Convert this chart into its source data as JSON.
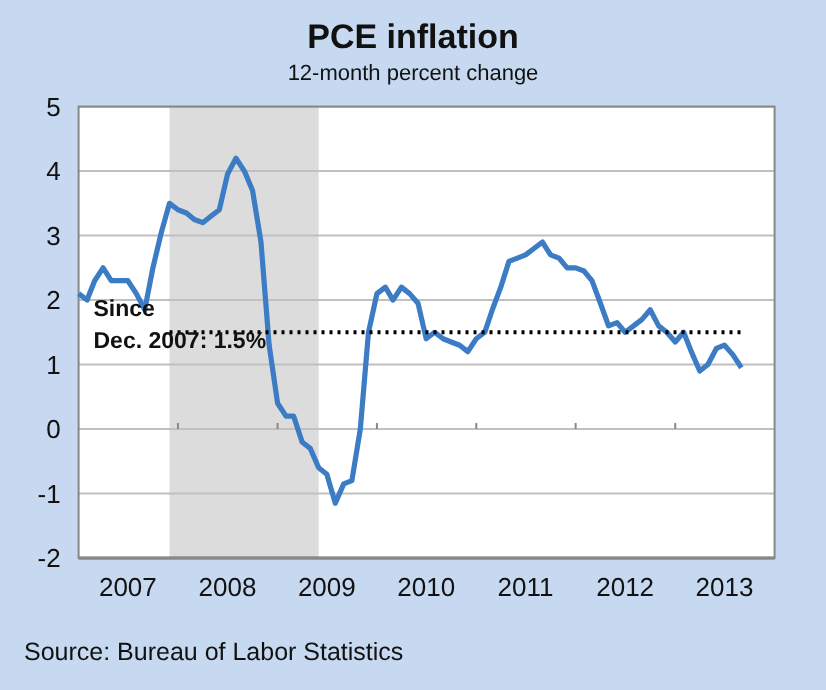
{
  "chart_data": {
    "type": "line",
    "title": "PCE inflation",
    "subtitle": "12-month percent change",
    "x": [
      "2007-01",
      "2007-02",
      "2007-03",
      "2007-04",
      "2007-05",
      "2007-06",
      "2007-07",
      "2007-08",
      "2007-09",
      "2007-10",
      "2007-11",
      "2007-12",
      "2008-01",
      "2008-02",
      "2008-03",
      "2008-04",
      "2008-05",
      "2008-06",
      "2008-07",
      "2008-08",
      "2008-09",
      "2008-10",
      "2008-11",
      "2008-12",
      "2009-01",
      "2009-02",
      "2009-03",
      "2009-04",
      "2009-05",
      "2009-06",
      "2009-07",
      "2009-08",
      "2009-09",
      "2009-10",
      "2009-11",
      "2009-12",
      "2010-01",
      "2010-02",
      "2010-03",
      "2010-04",
      "2010-05",
      "2010-06",
      "2010-07",
      "2010-08",
      "2010-09",
      "2010-10",
      "2010-11",
      "2010-12",
      "2011-01",
      "2011-02",
      "2011-03",
      "2011-04",
      "2011-05",
      "2011-06",
      "2011-07",
      "2011-08",
      "2011-09",
      "2011-10",
      "2011-11",
      "2011-12",
      "2012-01",
      "2012-02",
      "2012-03",
      "2012-04",
      "2012-05",
      "2012-06",
      "2012-07",
      "2012-08",
      "2012-09",
      "2012-10",
      "2012-11",
      "2012-12",
      "2013-01",
      "2013-02",
      "2013-03",
      "2013-04",
      "2013-05",
      "2013-06",
      "2013-07",
      "2013-08",
      "2013-09"
    ],
    "series": [
      {
        "color": "#3b7cc4",
        "values": [
          2.1,
          2.0,
          2.3,
          2.5,
          2.3,
          2.3,
          2.3,
          2.1,
          1.85,
          2.5,
          3.05,
          3.5,
          3.4,
          3.35,
          3.25,
          3.2,
          3.3,
          3.4,
          3.95,
          4.2,
          4.0,
          3.7,
          2.9,
          1.3,
          0.4,
          0.2,
          0.2,
          -0.2,
          -0.3,
          -0.6,
          -0.7,
          -1.15,
          -0.85,
          -0.8,
          0.0,
          1.5,
          2.1,
          2.2,
          2.0,
          2.2,
          2.1,
          1.95,
          1.4,
          1.5,
          1.4,
          1.35,
          1.3,
          1.2,
          1.4,
          1.5,
          1.85,
          2.2,
          2.6,
          2.65,
          2.7,
          2.8,
          2.9,
          2.7,
          2.65,
          2.5,
          2.5,
          2.45,
          2.3,
          1.95,
          1.6,
          1.65,
          1.5,
          1.6,
          1.7,
          1.85,
          1.6,
          1.5,
          1.35,
          1.5,
          1.2,
          0.9,
          1.0,
          1.25,
          1.3,
          1.15,
          0.95
        ]
      },
      {
        "type": "line",
        "color": "#000000",
        "line_style": "dotted",
        "x": [
          "2007-12",
          "2013-09"
        ],
        "values": [
          1.5,
          1.5
        ]
      }
    ],
    "xlim": [
      "2007-01-01",
      "2014-01-01"
    ],
    "xticks": [
      {
        "value": "2007-07-01",
        "label": "2007"
      },
      {
        "value": "2008-07-01",
        "label": "2008"
      },
      {
        "value": "2009-07-01",
        "label": "2009"
      },
      {
        "value": "2010-07-01",
        "label": "2010"
      },
      {
        "value": "2011-07-01",
        "label": "2011"
      },
      {
        "value": "2012-07-01",
        "label": "2012"
      },
      {
        "value": "2013-07-01",
        "label": "2013"
      },
      {
        "value": "2008-01-01",
        "label": null
      },
      {
        "value": "2009-01-01",
        "label": null
      },
      {
        "value": "2010-01-01",
        "label": null
      },
      {
        "value": "2011-01-01",
        "label": null
      },
      {
        "value": "2012-01-01",
        "label": null
      },
      {
        "value": "2013-01-01",
        "label": null
      }
    ],
    "ylim": [
      -2,
      5
    ],
    "yticks": [
      -2,
      -1,
      0,
      1,
      2,
      3,
      4,
      5
    ],
    "grid": "y",
    "bands": [
      {
        "axis": "x",
        "from": "2007-12",
        "to": "2009-06",
        "color": "#dcdcdc"
      }
    ],
    "annotations": [
      {
        "text": "Since\nDec. 2007: 1.5%",
        "x": "2007-12",
        "y": 1.5
      },
      "Source: Bureau of Labor Statistics"
    ]
  }
}
